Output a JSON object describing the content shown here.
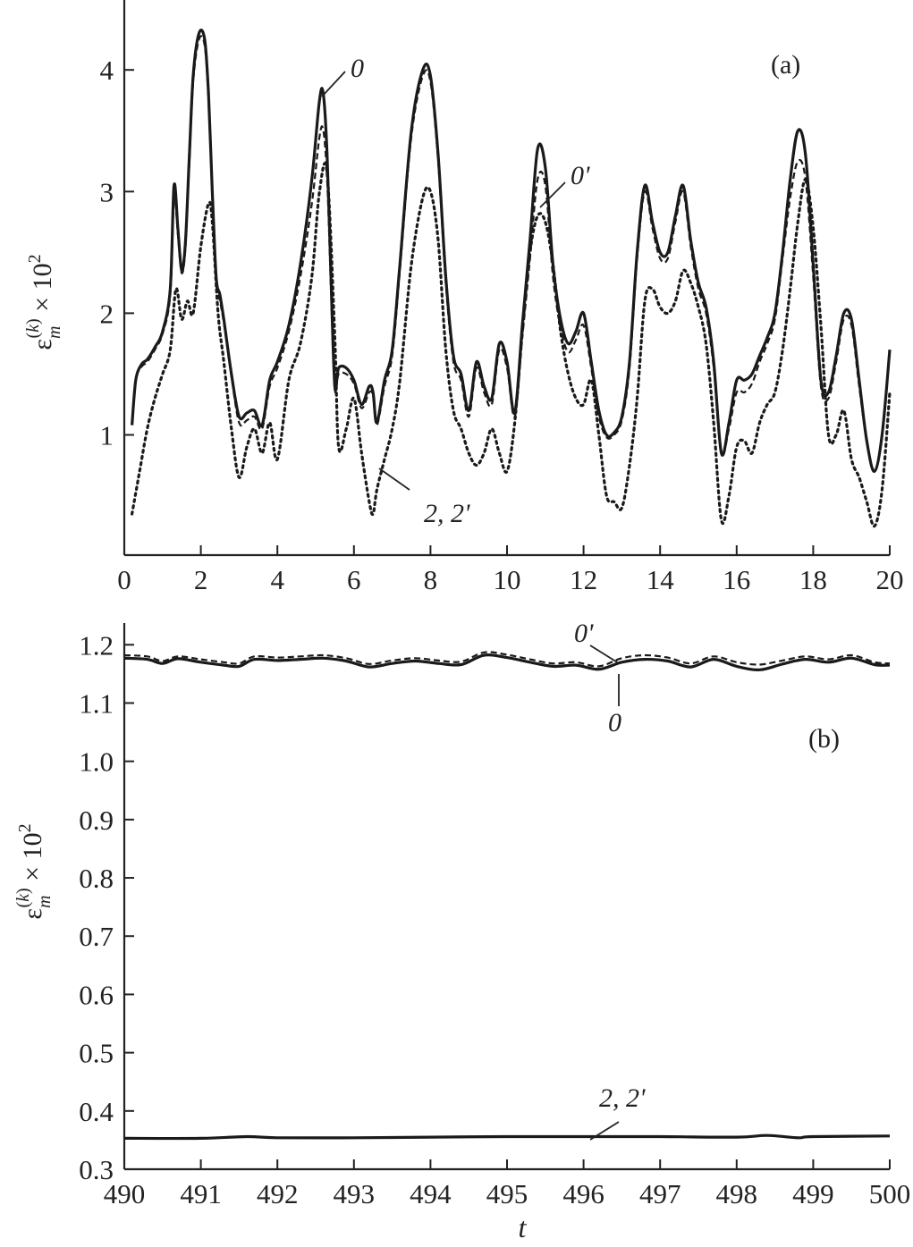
{
  "chart_data": [
    {
      "panel_label": "(a)",
      "type": "line",
      "xlabel": "",
      "ylabel": "ε_m^(k) × 10^2",
      "xlim": [
        0,
        20
      ],
      "ylim": [
        0.3,
        4.5
      ],
      "x_ticks": [
        0,
        2,
        4,
        6,
        8,
        10,
        12,
        14,
        16,
        18,
        20
      ],
      "x_tick_labels": [
        "0",
        "2",
        "4",
        "6",
        "8",
        "10",
        "12",
        "14",
        "16",
        "18",
        "20"
      ],
      "y_ticks": [
        1,
        2,
        3,
        4
      ],
      "y_tick_labels": [
        "1",
        "2",
        "3",
        "4"
      ],
      "grid": false,
      "series": [
        {
          "style": "solid",
          "x": [
            0.2,
            0.3,
            0.45,
            0.6,
            0.8,
            1.0,
            1.2,
            1.3,
            1.4,
            1.5,
            1.6,
            1.7,
            1.8,
            1.95,
            2.1,
            2.2,
            2.3,
            2.4,
            2.5,
            2.6,
            2.8,
            3.0,
            3.2,
            3.4,
            3.6,
            3.8,
            4.0,
            4.3,
            4.6,
            4.9,
            5.1,
            5.2,
            5.3,
            5.4,
            5.5,
            5.6,
            5.8,
            6.0,
            6.2,
            6.4,
            6.5,
            6.6,
            6.8,
            7.0,
            7.2,
            7.5,
            7.8,
            8.0,
            8.2,
            8.4,
            8.6,
            8.8,
            9.0,
            9.2,
            9.4,
            9.6,
            9.8,
            10.0,
            10.2,
            10.4,
            10.6,
            10.8,
            11.0,
            11.2,
            11.4,
            11.6,
            11.8,
            12.0,
            12.2,
            12.4,
            12.6,
            12.8,
            13.0,
            13.2,
            13.4,
            13.6,
            13.8,
            14.0,
            14.2,
            14.4,
            14.6,
            14.8,
            15.0,
            15.2,
            15.4,
            15.6,
            15.8,
            16.0,
            16.2,
            16.4,
            16.6,
            16.8,
            17.0,
            17.2,
            17.4,
            17.6,
            17.8,
            18.0,
            18.2,
            18.4,
            18.6,
            18.8,
            19.0,
            19.2,
            19.4,
            19.6,
            19.8,
            20.0
          ],
          "y": [
            1.08,
            1.45,
            1.58,
            1.62,
            1.72,
            1.85,
            2.2,
            3.05,
            2.7,
            2.35,
            2.6,
            3.3,
            3.95,
            4.3,
            4.25,
            3.8,
            3.0,
            2.3,
            2.15,
            1.95,
            1.5,
            1.15,
            1.18,
            1.2,
            1.08,
            1.45,
            1.6,
            1.9,
            2.4,
            3.1,
            3.75,
            3.8,
            3.3,
            2.3,
            1.4,
            1.55,
            1.55,
            1.45,
            1.25,
            1.4,
            1.35,
            1.1,
            1.45,
            1.7,
            2.4,
            3.5,
            4.0,
            3.95,
            3.3,
            2.3,
            1.65,
            1.5,
            1.2,
            1.6,
            1.4,
            1.3,
            1.75,
            1.6,
            1.18,
            1.9,
            2.6,
            3.35,
            3.2,
            2.4,
            1.95,
            1.75,
            1.85,
            2.0,
            1.6,
            1.2,
            1.0,
            1.02,
            1.15,
            1.6,
            2.5,
            3.05,
            2.75,
            2.5,
            2.5,
            2.8,
            3.05,
            2.6,
            2.25,
            2.05,
            1.6,
            0.85,
            1.1,
            1.45,
            1.45,
            1.5,
            1.65,
            1.8,
            2.0,
            2.5,
            3.1,
            3.5,
            3.3,
            2.4,
            1.45,
            1.35,
            1.65,
            2.0,
            1.95,
            1.45,
            0.95,
            0.7,
            1.0,
            1.7
          ]
        },
        {
          "style": "dashed",
          "x": [
            0.2,
            0.3,
            0.45,
            0.6,
            0.8,
            1.0,
            1.2,
            1.3,
            1.4,
            1.5,
            1.6,
            1.7,
            1.8,
            1.95,
            2.1,
            2.2,
            2.3,
            2.4,
            2.5,
            2.6,
            2.8,
            3.0,
            3.2,
            3.4,
            3.6,
            3.8,
            4.0,
            4.3,
            4.6,
            4.9,
            5.1,
            5.2,
            5.3,
            5.4,
            5.5,
            5.6,
            5.8,
            6.0,
            6.2,
            6.4,
            6.5,
            6.6,
            6.8,
            7.0,
            7.2,
            7.5,
            7.8,
            8.0,
            8.2,
            8.4,
            8.6,
            8.8,
            9.0,
            9.2,
            9.4,
            9.6,
            9.8,
            10.0,
            10.2,
            10.4,
            10.6,
            10.8,
            11.0,
            11.2,
            11.4,
            11.6,
            11.8,
            12.0,
            12.2,
            12.4,
            12.6,
            12.8,
            13.0,
            13.2,
            13.4,
            13.6,
            13.8,
            14.0,
            14.2,
            14.4,
            14.6,
            14.8,
            15.0,
            15.2,
            15.4,
            15.6,
            15.8,
            16.0,
            16.2,
            16.4,
            16.6,
            16.8,
            17.0,
            17.2,
            17.4,
            17.6,
            17.8,
            18.0,
            18.2,
            18.4,
            18.6,
            18.8,
            19.0,
            19.2,
            19.4,
            19.6,
            19.8,
            20.0
          ],
          "y": [
            1.08,
            1.45,
            1.56,
            1.6,
            1.7,
            1.83,
            2.15,
            2.95,
            2.65,
            2.33,
            2.55,
            3.25,
            3.9,
            4.25,
            4.2,
            3.75,
            2.95,
            2.25,
            2.1,
            1.92,
            1.48,
            1.1,
            1.12,
            1.15,
            1.05,
            1.4,
            1.55,
            1.85,
            2.3,
            2.9,
            3.45,
            3.5,
            3.1,
            2.2,
            1.38,
            1.5,
            1.5,
            1.42,
            1.22,
            1.35,
            1.32,
            1.08,
            1.4,
            1.65,
            2.35,
            3.45,
            3.95,
            3.9,
            3.25,
            2.25,
            1.6,
            1.45,
            1.15,
            1.55,
            1.35,
            1.25,
            1.7,
            1.55,
            1.15,
            1.8,
            2.45,
            3.1,
            3.05,
            2.3,
            1.88,
            1.68,
            1.78,
            1.9,
            1.55,
            1.15,
            0.98,
            1.0,
            1.12,
            1.55,
            2.45,
            3.0,
            2.7,
            2.45,
            2.45,
            2.75,
            3.0,
            2.55,
            2.2,
            2.0,
            1.55,
            0.85,
            1.05,
            1.35,
            1.35,
            1.42,
            1.6,
            1.75,
            1.95,
            2.45,
            2.95,
            3.25,
            3.1,
            2.3,
            1.4,
            1.3,
            1.6,
            1.95,
            1.9,
            1.4,
            0.95,
            0.7,
            1.0,
            1.7
          ]
        },
        {
          "style": "dotted",
          "x": [
            0.2,
            0.4,
            0.6,
            0.8,
            1.0,
            1.2,
            1.35,
            1.5,
            1.65,
            1.8,
            2.0,
            2.2,
            2.3,
            2.45,
            2.6,
            2.8,
            3.0,
            3.2,
            3.4,
            3.6,
            3.8,
            4.0,
            4.3,
            4.6,
            4.9,
            5.1,
            5.3,
            5.5,
            5.6,
            5.8,
            6.0,
            6.2,
            6.4,
            6.5,
            6.6,
            6.8,
            7.0,
            7.2,
            7.5,
            7.8,
            8.0,
            8.2,
            8.4,
            8.6,
            8.8,
            9.0,
            9.2,
            9.4,
            9.6,
            9.8,
            10.0,
            10.2,
            10.4,
            10.6,
            10.8,
            11.0,
            11.2,
            11.4,
            11.6,
            11.8,
            12.0,
            12.2,
            12.4,
            12.6,
            12.8,
            13.0,
            13.2,
            13.4,
            13.6,
            13.8,
            14.0,
            14.2,
            14.4,
            14.6,
            14.8,
            15.0,
            15.2,
            15.4,
            15.6,
            15.8,
            16.0,
            16.2,
            16.4,
            16.6,
            16.8,
            17.0,
            17.2,
            17.4,
            17.6,
            17.8,
            18.0,
            18.2,
            18.4,
            18.6,
            18.8,
            19.0,
            19.2,
            19.4,
            19.6,
            19.8,
            20.0
          ],
          "y": [
            0.35,
            0.7,
            1.05,
            1.3,
            1.5,
            1.7,
            2.2,
            1.95,
            2.1,
            2.0,
            2.55,
            2.9,
            2.75,
            2.0,
            1.6,
            1.05,
            0.65,
            0.9,
            1.05,
            0.85,
            1.1,
            0.8,
            1.45,
            1.75,
            2.3,
            3.0,
            3.15,
            1.8,
            0.9,
            1.05,
            1.3,
            0.85,
            0.45,
            0.35,
            0.55,
            0.8,
            1.05,
            1.45,
            2.4,
            2.95,
            3.0,
            2.6,
            1.7,
            1.2,
            1.05,
            0.85,
            0.75,
            0.85,
            1.05,
            0.85,
            0.7,
            1.1,
            1.85,
            2.5,
            2.8,
            2.75,
            2.4,
            1.85,
            1.5,
            1.3,
            1.25,
            1.45,
            1.0,
            0.5,
            0.45,
            0.4,
            0.75,
            1.3,
            2.1,
            2.2,
            2.05,
            2.0,
            2.1,
            2.35,
            2.25,
            2.05,
            1.75,
            1.1,
            0.3,
            0.5,
            0.9,
            0.95,
            0.85,
            1.1,
            1.25,
            1.35,
            1.7,
            2.2,
            2.75,
            3.1,
            2.7,
            1.9,
            1.0,
            1.0,
            1.2,
            0.8,
            0.65,
            0.45,
            0.25,
            0.55,
            1.35
          ]
        }
      ],
      "annotations": [
        "0",
        "0'",
        "2, 2'"
      ]
    },
    {
      "panel_label": "(b)",
      "type": "line",
      "xlabel": "t",
      "ylabel": "ε_m^(k) × 10^2",
      "xlim": [
        490,
        500
      ],
      "ylim": [
        0.3,
        1.25
      ],
      "x_ticks": [
        490,
        491,
        492,
        493,
        494,
        495,
        496,
        497,
        498,
        499,
        500
      ],
      "x_tick_labels": [
        "490",
        "491",
        "492",
        "493",
        "494",
        "495",
        "496",
        "497",
        "498",
        "499",
        "500"
      ],
      "y_ticks": [
        0.3,
        0.4,
        0.5,
        0.6,
        0.7,
        0.8,
        0.9,
        1.0,
        1.1,
        1.2
      ],
      "y_tick_labels": [
        "0.3",
        "0.4",
        "0.5",
        "0.6",
        "0.7",
        "0.8",
        "0.9",
        "1.0",
        "1.1",
        "1.2"
      ],
      "grid": false,
      "series": [
        {
          "style": "solid",
          "x": [
            490.0,
            490.3,
            490.5,
            490.7,
            491.0,
            491.3,
            491.5,
            491.7,
            492.0,
            492.3,
            492.6,
            492.9,
            493.2,
            493.5,
            493.8,
            494.1,
            494.4,
            494.7,
            495.0,
            495.3,
            495.6,
            495.9,
            496.2,
            496.5,
            496.8,
            497.1,
            497.4,
            497.7,
            498.0,
            498.3,
            498.6,
            498.9,
            499.2,
            499.5,
            499.8,
            500.0
          ],
          "y": [
            1.177,
            1.175,
            1.168,
            1.176,
            1.17,
            1.165,
            1.163,
            1.175,
            1.173,
            1.175,
            1.177,
            1.172,
            1.162,
            1.168,
            1.172,
            1.168,
            1.166,
            1.182,
            1.178,
            1.17,
            1.163,
            1.165,
            1.158,
            1.17,
            1.175,
            1.172,
            1.162,
            1.175,
            1.163,
            1.157,
            1.167,
            1.175,
            1.17,
            1.177,
            1.166,
            1.165
          ]
        },
        {
          "style": "dashed",
          "x": [
            490.0,
            490.3,
            490.5,
            490.7,
            491.0,
            491.3,
            491.5,
            491.7,
            492.0,
            492.3,
            492.6,
            492.9,
            493.2,
            493.5,
            493.8,
            494.1,
            494.4,
            494.7,
            495.0,
            495.3,
            495.6,
            495.9,
            496.2,
            496.5,
            496.8,
            497.1,
            497.4,
            497.7,
            498.0,
            498.3,
            498.6,
            498.9,
            499.2,
            499.5,
            499.8,
            500.0
          ],
          "y": [
            1.182,
            1.18,
            1.172,
            1.18,
            1.175,
            1.17,
            1.168,
            1.18,
            1.178,
            1.18,
            1.182,
            1.177,
            1.167,
            1.173,
            1.177,
            1.173,
            1.171,
            1.187,
            1.183,
            1.175,
            1.168,
            1.17,
            1.163,
            1.177,
            1.182,
            1.178,
            1.168,
            1.18,
            1.17,
            1.166,
            1.173,
            1.18,
            1.175,
            1.182,
            1.17,
            1.168
          ]
        },
        {
          "style": "solid",
          "x": [
            490.0,
            491.0,
            491.6,
            492.0,
            493.0,
            494.0,
            495.0,
            496.0,
            497.0,
            498.0,
            498.4,
            498.8,
            499.0,
            500.0
          ],
          "y": [
            0.353,
            0.353,
            0.356,
            0.354,
            0.354,
            0.355,
            0.356,
            0.356,
            0.356,
            0.355,
            0.358,
            0.354,
            0.356,
            0.357
          ]
        }
      ],
      "annotations": [
        "0'",
        "0",
        "2, 2'"
      ]
    }
  ]
}
